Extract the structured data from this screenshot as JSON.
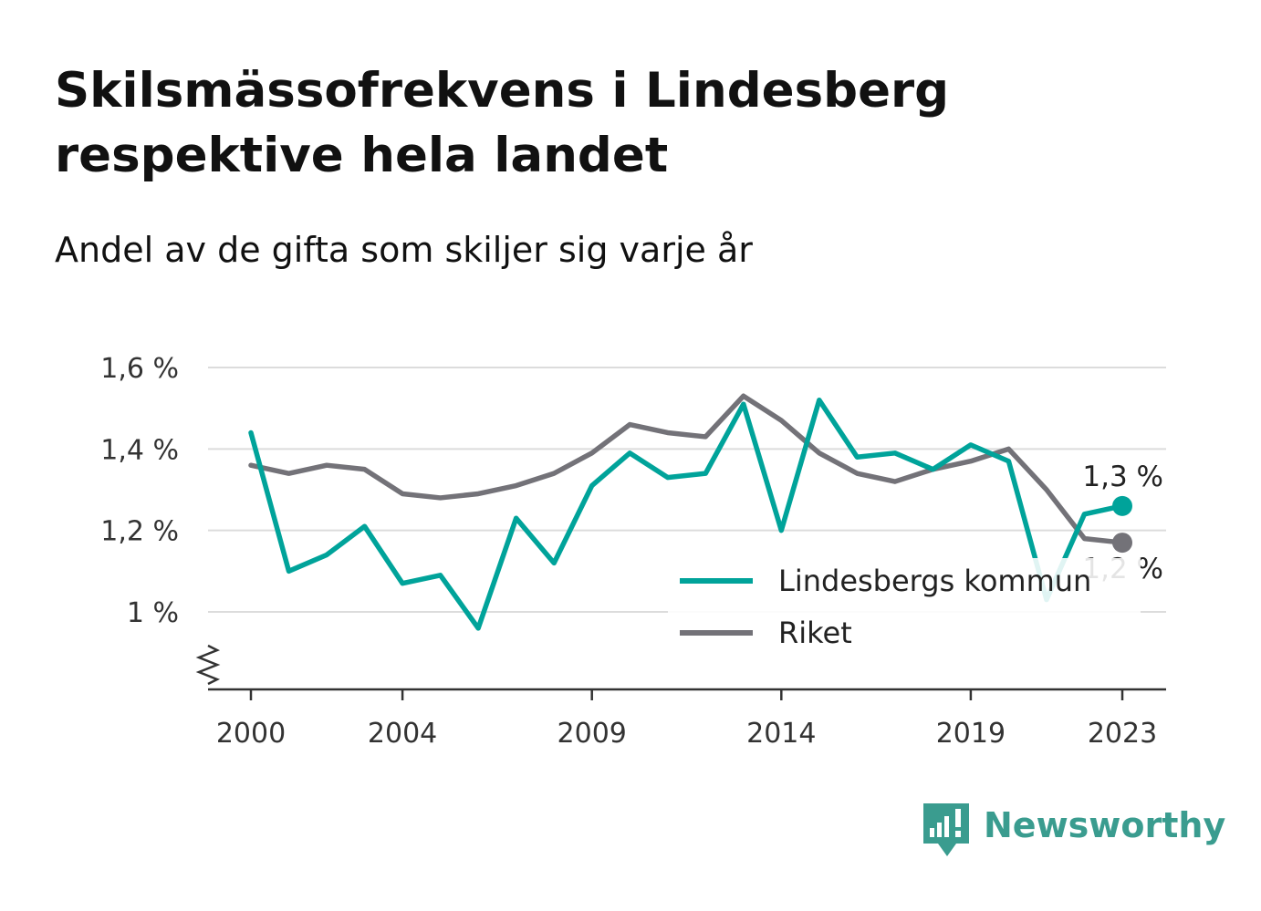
{
  "chart_data": {
    "type": "line",
    "title": "Skilsmässofrekvens i Lindesberg respektive hela landet",
    "subtitle": "Andel av de gifta som skiljer sig varje år",
    "x": [
      2000,
      2001,
      2002,
      2003,
      2004,
      2005,
      2006,
      2007,
      2008,
      2009,
      2010,
      2011,
      2012,
      2013,
      2014,
      2015,
      2016,
      2017,
      2018,
      2019,
      2020,
      2021,
      2022,
      2023
    ],
    "x_ticks": [
      {
        "value": 2000,
        "label": "2000"
      },
      {
        "value": 2004,
        "label": "2004"
      },
      {
        "value": 2009,
        "label": "2009"
      },
      {
        "value": 2014,
        "label": "2014"
      },
      {
        "value": 2019,
        "label": "2019"
      },
      {
        "value": 2023,
        "label": "2023"
      }
    ],
    "y_ticks": [
      {
        "value": 1.0,
        "label": "1 %"
      },
      {
        "value": 1.2,
        "label": "1,2 %"
      },
      {
        "value": 1.4,
        "label": "1,4 %"
      },
      {
        "value": 1.6,
        "label": "1,6 %"
      }
    ],
    "ylim": [
      0.81,
      1.6
    ],
    "y_axis_break": true,
    "grid": true,
    "legend_position": "bottom-right",
    "series": [
      {
        "name": "Lindesbergs kommun",
        "color": "#00a39a",
        "values": [
          1.44,
          1.1,
          1.14,
          1.21,
          1.07,
          1.09,
          0.96,
          1.23,
          1.12,
          1.31,
          1.39,
          1.33,
          1.34,
          1.51,
          1.2,
          1.52,
          1.38,
          1.39,
          1.35,
          1.41,
          1.37,
          1.03,
          1.24,
          1.26
        ],
        "end_label": "1,3 %"
      },
      {
        "name": "Riket",
        "color": "#737278",
        "values": [
          1.36,
          1.34,
          1.36,
          1.35,
          1.29,
          1.28,
          1.29,
          1.31,
          1.34,
          1.39,
          1.46,
          1.44,
          1.43,
          1.53,
          1.47,
          1.39,
          1.34,
          1.32,
          1.35,
          1.37,
          1.4,
          1.3,
          1.18,
          1.17
        ],
        "end_label": "1,2 %"
      }
    ]
  },
  "brand": {
    "name": "Newsworthy",
    "color": "#3a9c8f",
    "icon": "newsworthy-logo-icon"
  }
}
